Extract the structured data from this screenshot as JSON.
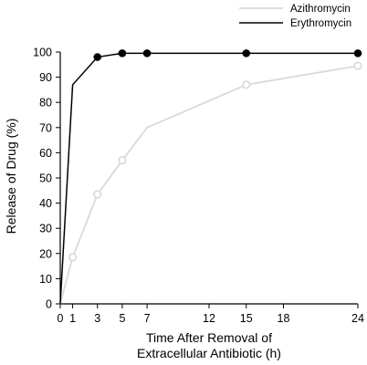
{
  "chart_data": {
    "type": "line",
    "ylabel": "Release of Drug (%)",
    "xlabel_lines": [
      "Time After Removal of",
      "Extracellular Antibiotic (h)"
    ],
    "xlim": [
      0,
      24
    ],
    "ylim": [
      0,
      100
    ],
    "x_ticks": [
      0,
      1,
      3,
      5,
      7,
      12,
      15,
      18,
      24
    ],
    "y_ticks": [
      0,
      10,
      20,
      30,
      40,
      50,
      60,
      70,
      80,
      90,
      100
    ],
    "legend_position": "top-right",
    "series": [
      {
        "name": "Azithromycin",
        "color": "#d9d9d9",
        "marker": "open-circle",
        "points": [
          [
            0,
            0
          ],
          [
            1,
            18.5
          ],
          [
            3,
            43.5
          ],
          [
            5,
            57
          ],
          [
            7,
            70
          ],
          [
            15,
            87
          ],
          [
            24,
            94.5
          ]
        ],
        "marked_x": [
          1,
          3,
          5,
          15,
          24
        ]
      },
      {
        "name": "Erythromycin",
        "color": "#000000",
        "marker": "filled-circle",
        "points": [
          [
            0,
            0
          ],
          [
            1,
            87
          ],
          [
            3,
            98
          ],
          [
            5,
            99.5
          ],
          [
            7,
            99.5
          ],
          [
            15,
            99.5
          ],
          [
            24,
            99.5
          ]
        ],
        "marked_x": [
          3,
          5,
          7,
          15,
          24
        ]
      }
    ]
  }
}
